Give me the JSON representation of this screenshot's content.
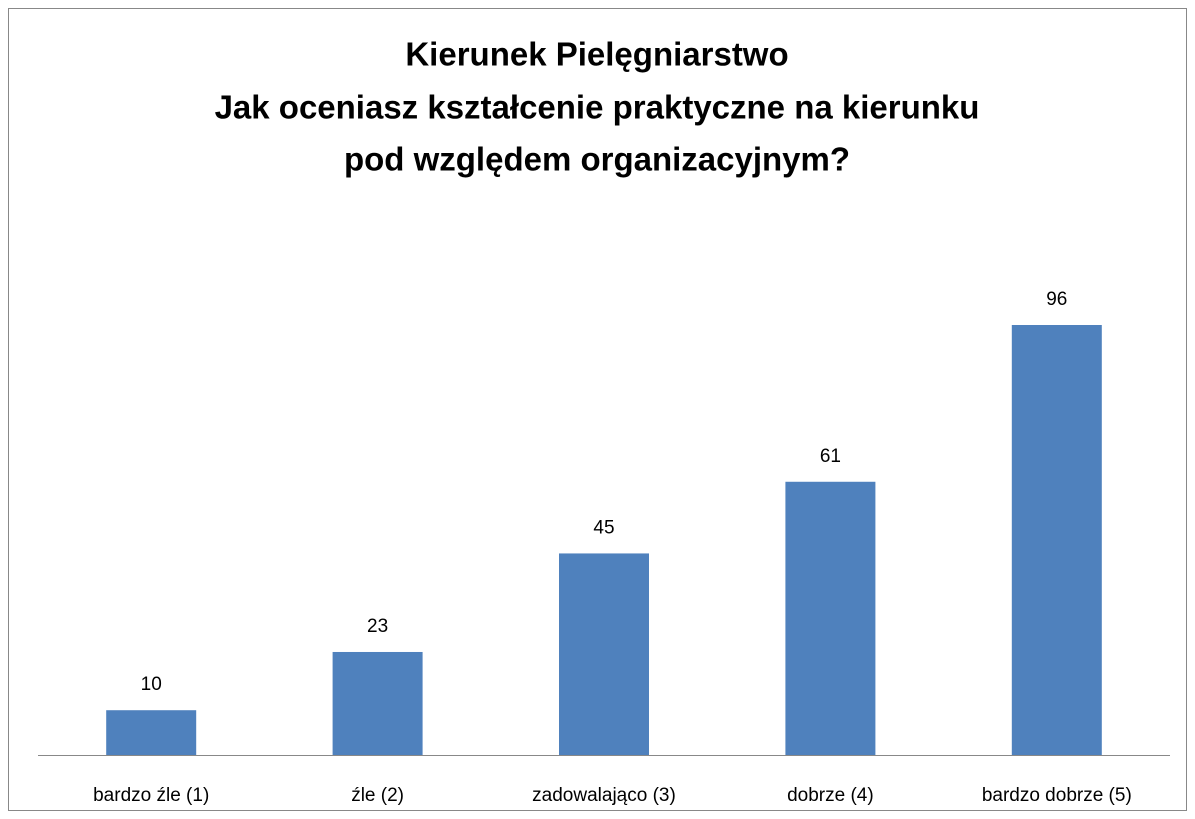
{
  "chart_data": {
    "type": "bar",
    "title": [
      "Kierunek Pielęgniarstwo",
      "Jak oceniasz kształcenie praktyczne na kierunku",
      "pod względem organizacyjnym?"
    ],
    "categories": [
      "bardzo źle (1)",
      "źle (2)",
      "zadowalająco (3)",
      "dobrze (4)",
      "bardzo dobrze (5)"
    ],
    "values": [
      10,
      23,
      45,
      61,
      96
    ],
    "color": "#4f81bd"
  }
}
